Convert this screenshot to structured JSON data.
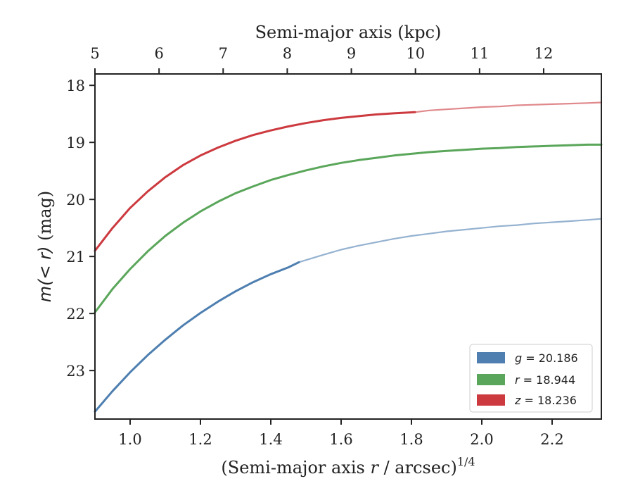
{
  "chart_data": {
    "type": "line",
    "x_axis": {
      "label": "(Semi-major axis r / arcsec)^1/4",
      "label_prefix": "(Semi-major axis ",
      "label_var": "r",
      "label_mid": " / arcsec)",
      "label_sup": "1/4",
      "range": [
        0.9,
        2.34
      ],
      "ticks": [
        1.0,
        1.2,
        1.4,
        1.6,
        1.8,
        2.0,
        2.2
      ],
      "tick_labels": [
        "1.0",
        "1.2",
        "1.4",
        "1.6",
        "1.8",
        "2.0",
        "2.2"
      ]
    },
    "top_axis": {
      "label": "Semi-major axis (kpc)",
      "ticks": [
        5,
        6,
        7,
        8,
        9,
        10,
        11,
        12
      ],
      "tick_labels": [
        "5",
        "6",
        "7",
        "8",
        "9",
        "10",
        "11",
        "12"
      ],
      "range": [
        5.0,
        12.9
      ]
    },
    "y_axis": {
      "label": "m(<r) (mag)",
      "label_var": "m(< r)",
      "label_unit": " (mag)",
      "range": [
        23.85,
        17.8
      ],
      "inverted": true,
      "ticks": [
        18,
        19,
        20,
        21,
        22,
        23
      ],
      "tick_labels": [
        "18",
        "19",
        "20",
        "21",
        "22",
        "23"
      ]
    },
    "legend": {
      "position": "lower-right",
      "entries": [
        {
          "var": "g",
          "text": " = 20.186",
          "color": "#4e7fb0"
        },
        {
          "var": "r",
          "text": " = 18.944",
          "color": "#5aa65a"
        },
        {
          "var": "z",
          "text": " = 18.236",
          "color": "#cc3a3f"
        }
      ]
    },
    "series": [
      {
        "name": "g = 20.186",
        "color": "#4e7fb0",
        "x": [
          0.9,
          0.95,
          1.0,
          1.05,
          1.1,
          1.15,
          1.2,
          1.25,
          1.3,
          1.35,
          1.4,
          1.45,
          1.48,
          1.55,
          1.6,
          1.65,
          1.7,
          1.75,
          1.8,
          1.85,
          1.9,
          1.95,
          2.0,
          2.05,
          2.1,
          2.15,
          2.2,
          2.25,
          2.3,
          2.34
        ],
        "y": [
          23.72,
          23.36,
          23.03,
          22.73,
          22.46,
          22.21,
          21.99,
          21.79,
          21.61,
          21.45,
          21.31,
          21.19,
          21.1,
          20.97,
          20.88,
          20.81,
          20.75,
          20.69,
          20.64,
          20.6,
          20.56,
          20.53,
          20.5,
          20.47,
          20.45,
          20.42,
          20.4,
          20.38,
          20.36,
          20.34
        ],
        "solid_until": 1.48
      },
      {
        "name": "r = 18.944",
        "color": "#5aa65a",
        "x": [
          0.9,
          0.95,
          1.0,
          1.05,
          1.1,
          1.15,
          1.2,
          1.25,
          1.3,
          1.35,
          1.4,
          1.45,
          1.5,
          1.55,
          1.6,
          1.65,
          1.7,
          1.75,
          1.8,
          1.85,
          1.9,
          1.95,
          2.0,
          2.05,
          2.1,
          2.15,
          2.2,
          2.25,
          2.3,
          2.34
        ],
        "y": [
          21.98,
          21.57,
          21.22,
          20.91,
          20.64,
          20.41,
          20.21,
          20.04,
          19.89,
          19.77,
          19.66,
          19.57,
          19.49,
          19.42,
          19.36,
          19.31,
          19.27,
          19.23,
          19.2,
          19.17,
          19.15,
          19.13,
          19.11,
          19.1,
          19.08,
          19.07,
          19.06,
          19.05,
          19.04,
          19.04
        ],
        "solid_until": 2.34
      },
      {
        "name": "z = 18.236",
        "color": "#cc3a3f",
        "x": [
          0.9,
          0.95,
          1.0,
          1.05,
          1.1,
          1.15,
          1.2,
          1.25,
          1.3,
          1.35,
          1.4,
          1.45,
          1.5,
          1.55,
          1.6,
          1.65,
          1.7,
          1.75,
          1.81,
          1.85,
          1.9,
          1.95,
          2.0,
          2.05,
          2.1,
          2.15,
          2.2,
          2.25,
          2.3,
          2.34
        ],
        "y": [
          20.9,
          20.5,
          20.15,
          19.86,
          19.61,
          19.4,
          19.23,
          19.09,
          18.97,
          18.87,
          18.79,
          18.72,
          18.66,
          18.61,
          18.57,
          18.54,
          18.51,
          18.49,
          18.47,
          18.44,
          18.42,
          18.4,
          18.38,
          18.37,
          18.35,
          18.34,
          18.33,
          18.32,
          18.31,
          18.3
        ],
        "solid_until": 1.81
      }
    ]
  }
}
